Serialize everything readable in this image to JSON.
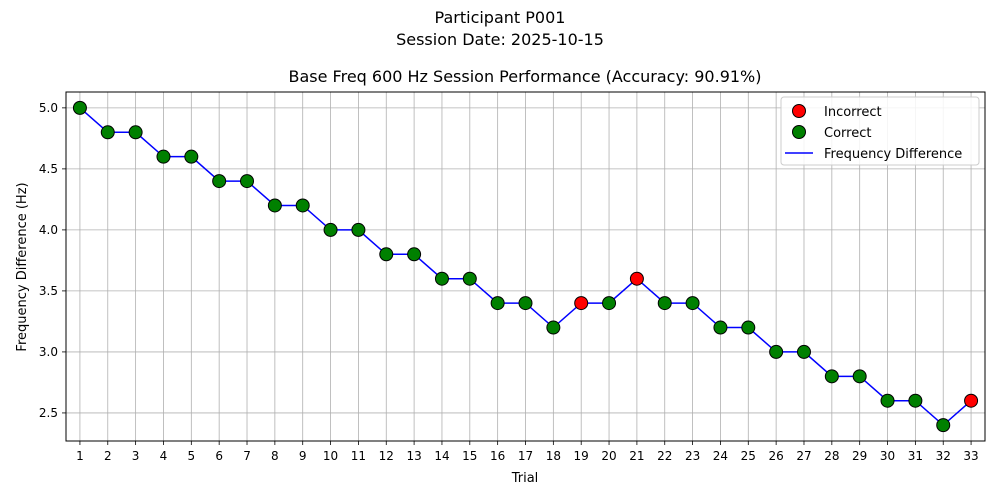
{
  "header": {
    "participant": "Participant P001",
    "session_date": "Session Date: 2025-10-15"
  },
  "chart_data": {
    "type": "line",
    "title": "Base Freq 600 Hz Session Performance (Accuracy: 90.91%)",
    "xlabel": "Trial",
    "ylabel": "Frequency Difference (Hz)",
    "xlim": [
      0.5,
      33.5
    ],
    "ylim": [
      2.27,
      5.13
    ],
    "y_ticks": [
      "2.5",
      "3.0",
      "3.5",
      "4.0",
      "4.5",
      "5.0"
    ],
    "grid": true,
    "legend_position": "top-right",
    "colors": {
      "line": "#0000ff",
      "correct": "#008000",
      "incorrect": "#ff0000",
      "grid": "#b0b0b0"
    },
    "legend": [
      "Incorrect",
      "Correct",
      "Frequency Difference"
    ],
    "x": [
      1,
      2,
      3,
      4,
      5,
      6,
      7,
      8,
      9,
      10,
      11,
      12,
      13,
      14,
      15,
      16,
      17,
      18,
      19,
      20,
      21,
      22,
      23,
      24,
      25,
      26,
      27,
      28,
      29,
      30,
      31,
      32,
      33
    ],
    "y": [
      5.0,
      4.8,
      4.8,
      4.6,
      4.6,
      4.4,
      4.4,
      4.2,
      4.2,
      4.0,
      4.0,
      3.8,
      3.8,
      3.6,
      3.6,
      3.4,
      3.4,
      3.2,
      3.4,
      3.4,
      3.6,
      3.4,
      3.4,
      3.2,
      3.2,
      3.0,
      3.0,
      2.8,
      2.8,
      2.6,
      2.6,
      2.4,
      2.6
    ],
    "correct": [
      true,
      true,
      true,
      true,
      true,
      true,
      true,
      true,
      true,
      true,
      true,
      true,
      true,
      true,
      true,
      true,
      true,
      true,
      false,
      true,
      false,
      true,
      true,
      true,
      true,
      true,
      true,
      true,
      true,
      true,
      true,
      true,
      false
    ]
  }
}
